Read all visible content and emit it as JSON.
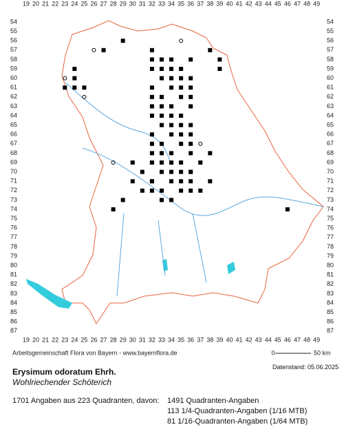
{
  "map": {
    "x_labels": [
      19,
      20,
      21,
      22,
      23,
      24,
      25,
      26,
      27,
      28,
      29,
      30,
      31,
      32,
      33,
      34,
      35,
      36,
      37,
      38,
      39,
      40,
      41,
      42,
      43,
      44,
      45,
      46,
      47,
      48,
      49
    ],
    "y_labels": [
      54,
      55,
      56,
      57,
      58,
      59,
      60,
      61,
      62,
      63,
      64,
      65,
      66,
      67,
      68,
      69,
      70,
      71,
      72,
      73,
      74,
      75,
      76,
      77,
      78,
      79,
      80,
      81,
      82,
      83,
      84,
      85,
      86,
      87
    ],
    "credit": "Arbeitsgemeinschaft Flora von Bayern - www.bayernflora.de",
    "scale_start": "0",
    "scale_end": "50 km",
    "date": "Datenstand: 05.06.2025",
    "title": "Erysimum odoratum Ehrh.",
    "subtitle": "Wohlriechender Schöterich",
    "summary": "1701 Angaben aus 223 Quadranten, davon:",
    "stats": [
      "1491 Quadranten-Angaben",
      "113 1/4-Quadranten-Angaben (1/16 MTB)",
      "81 1/16-Quadranten-Angaben (1/64 MTB)"
    ]
  }
}
